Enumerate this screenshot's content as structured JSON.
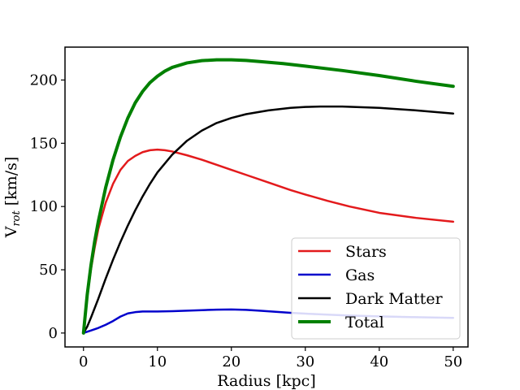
{
  "chart_data": {
    "type": "line",
    "xlabel": "Radius [kpc]",
    "ylabel_main": "V",
    "ylabel_sub": "rot",
    "ylabel_unit": " [km/s]",
    "xlim": [
      -2.5,
      52
    ],
    "ylim": [
      -11,
      226
    ],
    "xticks": [
      0,
      10,
      20,
      30,
      40,
      50
    ],
    "yticks": [
      0,
      50,
      100,
      150,
      200
    ],
    "grid": false,
    "legend_position": "lower-right",
    "series": [
      {
        "name": "Stars",
        "color": "#e31a1c",
        "stroke_width": 2.5,
        "x": [
          0,
          0.5,
          1,
          1.5,
          2,
          3,
          4,
          5,
          6,
          7,
          8,
          9,
          10,
          11,
          12,
          14,
          16,
          18,
          20,
          22,
          25,
          28,
          30,
          33,
          36,
          40,
          45,
          50
        ],
        "y": [
          0,
          28,
          50,
          67,
          82,
          103,
          118,
          129,
          136,
          140,
          143,
          144.5,
          145,
          144.5,
          143.5,
          140.5,
          137,
          133,
          129,
          125,
          119,
          113,
          109.5,
          104.5,
          100,
          95,
          91,
          88
        ]
      },
      {
        "name": "Gas",
        "color": "#0000cc",
        "stroke_width": 2.5,
        "x": [
          0,
          1,
          2,
          3,
          4,
          5,
          6,
          7,
          8,
          9,
          10,
          12,
          14,
          16,
          18,
          20,
          22,
          24,
          26,
          28,
          30,
          33,
          36,
          40,
          45,
          50
        ],
        "y": [
          0,
          2,
          4,
          6.5,
          9.5,
          13,
          15.5,
          16.5,
          17,
          17,
          17,
          17.3,
          17.7,
          18.1,
          18.5,
          18.6,
          18.3,
          17.6,
          16.8,
          16,
          15.3,
          14.5,
          13.8,
          13.2,
          12.5,
          12
        ]
      },
      {
        "name": "Dark Matter",
        "color": "#000000",
        "stroke_width": 2.5,
        "x": [
          0,
          0.5,
          1,
          2,
          3,
          4,
          5,
          6,
          7,
          8,
          9,
          10,
          12,
          14,
          16,
          18,
          20,
          22,
          25,
          28,
          30,
          32,
          35,
          40,
          45,
          50
        ],
        "y": [
          0,
          5,
          12,
          27,
          43,
          58,
          72,
          85,
          97,
          108,
          118,
          127,
          141,
          152,
          160,
          166,
          170,
          173,
          176,
          178,
          178.7,
          179,
          179,
          178,
          176,
          173.5
        ]
      },
      {
        "name": "Total",
        "color": "#008000",
        "stroke_width": 4,
        "x": [
          0,
          0.5,
          1,
          1.5,
          2,
          3,
          4,
          5,
          6,
          7,
          8,
          9,
          10,
          11,
          12,
          14,
          16,
          18,
          20,
          22,
          24,
          27,
          30,
          35,
          40,
          45,
          50
        ],
        "y": [
          0,
          30,
          53,
          72,
          88,
          115,
          137,
          155,
          170,
          182,
          191,
          198,
          203,
          207,
          210,
          213.5,
          215.3,
          216,
          216,
          215.5,
          214.5,
          213,
          211,
          207.5,
          203.5,
          199,
          195
        ]
      }
    ]
  }
}
